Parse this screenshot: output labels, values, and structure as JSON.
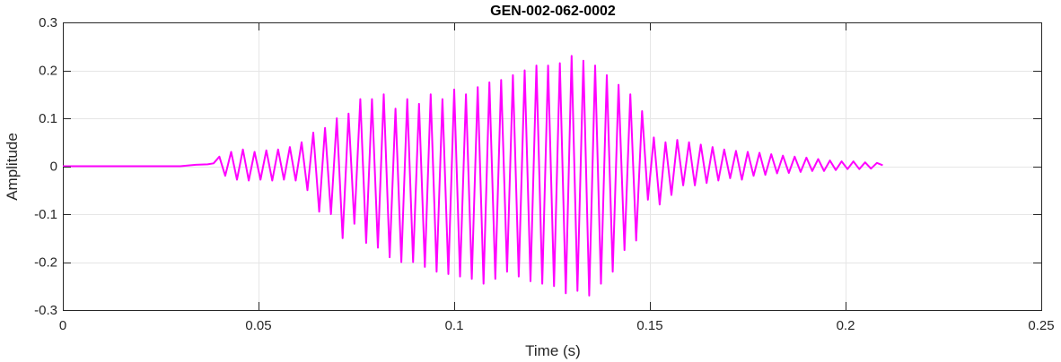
{
  "chart_data": {
    "type": "line",
    "title": "GEN-002-062-0002",
    "xlabel": "Time (s)",
    "ylabel": "Amplitude",
    "xlim": [
      0,
      0.25
    ],
    "ylim": [
      -0.3,
      0.3
    ],
    "xticks": [
      0,
      0.05,
      0.1,
      0.15,
      0.2,
      0.25
    ],
    "xtick_labels": [
      "0",
      "0.05",
      "0.1",
      "0.15",
      "0.2",
      "0.25"
    ],
    "yticks": [
      -0.3,
      -0.2,
      -0.1,
      0,
      0.1,
      0.2,
      0.3
    ],
    "ytick_labels": [
      "-0.3",
      "-0.2",
      "-0.1",
      "0",
      "0.1",
      "0.2",
      "0.3"
    ],
    "grid": true,
    "line_color": "#ff00ff",
    "series": [
      {
        "x": [
          0,
          0.01,
          0.02,
          0.03,
          0.034,
          0.037,
          0.0385,
          0.04,
          0.0415,
          0.043,
          0.0445,
          0.046,
          0.0475,
          0.049,
          0.0505,
          0.052,
          0.0535,
          0.055,
          0.0565,
          0.058,
          0.0595,
          0.061,
          0.0625,
          0.064,
          0.0655,
          0.067,
          0.0685,
          0.07,
          0.0715,
          0.073,
          0.0745,
          0.076,
          0.0775,
          0.079,
          0.0805,
          0.082,
          0.0835,
          0.085,
          0.0865,
          0.088,
          0.0895,
          0.091,
          0.0925,
          0.094,
          0.0955,
          0.097,
          0.0985,
          0.1,
          0.1015,
          0.103,
          0.1045,
          0.106,
          0.1075,
          0.109,
          0.1105,
          0.112,
          0.1135,
          0.115,
          0.1165,
          0.118,
          0.1195,
          0.121,
          0.1225,
          0.124,
          0.1255,
          0.127,
          0.1285,
          0.13,
          0.1315,
          0.133,
          0.1345,
          0.136,
          0.1375,
          0.139,
          0.1405,
          0.142,
          0.1435,
          0.145,
          0.1465,
          0.148,
          0.1495,
          0.151,
          0.1525,
          0.154,
          0.1555,
          0.157,
          0.1585,
          0.16,
          0.1615,
          0.163,
          0.1645,
          0.166,
          0.1675,
          0.169,
          0.1705,
          0.172,
          0.1735,
          0.175,
          0.1765,
          0.178,
          0.1795,
          0.181,
          0.1825,
          0.184,
          0.1855,
          0.187,
          0.1885,
          0.19,
          0.1915,
          0.193,
          0.1945,
          0.196,
          0.1975,
          0.199,
          0.2005,
          0.202,
          0.2035,
          0.205,
          0.2065,
          0.208,
          0.2095
        ],
        "y": [
          0,
          0,
          0,
          0,
          0.003,
          0.004,
          0.006,
          0.02,
          -0.02,
          0.03,
          -0.028,
          0.035,
          -0.03,
          0.03,
          -0.028,
          0.033,
          -0.03,
          0.035,
          -0.028,
          0.04,
          -0.03,
          0.05,
          -0.05,
          0.07,
          -0.095,
          0.08,
          -0.1,
          0.1,
          -0.15,
          0.11,
          -0.12,
          0.14,
          -0.16,
          0.14,
          -0.17,
          0.15,
          -0.19,
          0.12,
          -0.2,
          0.14,
          -0.2,
          0.13,
          -0.21,
          0.15,
          -0.22,
          0.14,
          -0.225,
          0.16,
          -0.23,
          0.15,
          -0.235,
          0.165,
          -0.245,
          0.175,
          -0.235,
          0.18,
          -0.22,
          0.19,
          -0.23,
          0.2,
          -0.24,
          0.21,
          -0.245,
          0.21,
          -0.25,
          0.215,
          -0.265,
          0.23,
          -0.26,
          0.22,
          -0.27,
          0.21,
          -0.245,
          0.19,
          -0.22,
          0.17,
          -0.175,
          0.15,
          -0.155,
          0.115,
          -0.07,
          0.06,
          -0.08,
          0.05,
          -0.06,
          0.055,
          -0.04,
          0.05,
          -0.04,
          0.045,
          -0.035,
          0.04,
          -0.03,
          0.035,
          -0.025,
          0.032,
          -0.028,
          0.03,
          -0.02,
          0.028,
          -0.018,
          0.025,
          -0.015,
          0.022,
          -0.014,
          0.02,
          -0.012,
          0.018,
          -0.01,
          0.015,
          -0.01,
          0.012,
          -0.008,
          0.01,
          -0.006,
          0.01,
          -0.006,
          0.008,
          -0.005,
          0.007,
          0.002
        ]
      }
    ]
  }
}
